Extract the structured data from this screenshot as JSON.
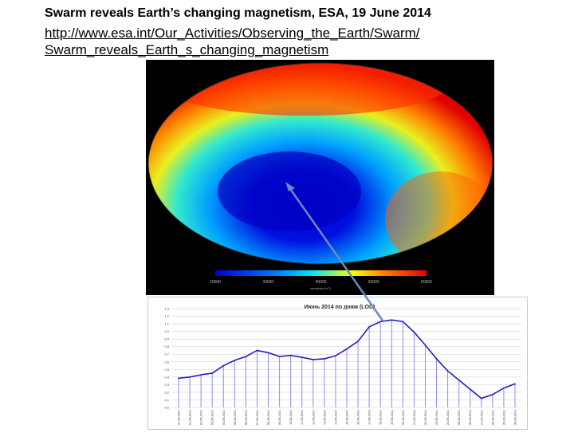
{
  "slide": {
    "title": "Swarm reveals Earth’s changing magnetism, ESA, 19 June 2014",
    "link_line1": "http://www.esa.int/Our_Activities/Observing_the_Earth/Swarm/",
    "link_line2": "Swarm_reveals_Earth_s_changing_magnetism"
  },
  "map": {
    "colorbar_ticks": [
      "20000",
      "30000",
      "40000",
      "50000",
      "60000"
    ],
    "colorbar_label": "nanotesla (nT)",
    "colors": [
      "#0000c8",
      "#00c8ff",
      "#ffff00",
      "#ff8000",
      "#e00000"
    ]
  },
  "chart_data": {
    "type": "line",
    "title": "Июнь  2014       по дням (LOD)",
    "xlabel": "",
    "ylabel": "",
    "ylim": [
      0.0,
      1.3
    ],
    "yticks": [
      "0,0",
      "0,1",
      "0,2",
      "0,3",
      "0,4",
      "0,5",
      "0,6",
      "0,7",
      "0,8",
      "0,9",
      "1,0",
      "1,1",
      "1,2",
      "1,3"
    ],
    "grid": true,
    "color": "#2020c0",
    "categories": [
      "31.05.2014",
      "01.06.2014",
      "02.06.2014",
      "03.06.2014",
      "04.06.2014",
      "05.06.2014",
      "06.06.2014",
      "07.06.2014",
      "08.06.2014",
      "09.06.2014",
      "10.06.2014",
      "11.06.2014",
      "12.06.2014",
      "13.06.2014",
      "14.06.2014",
      "15.06.2014",
      "16.06.2014",
      "17.06.2014",
      "18.06.2014",
      "19.06.2014",
      "20.06.2014",
      "21.06.2014",
      "22.06.2014",
      "23.06.2014",
      "24.06.2014",
      "25.06.2014",
      "26.06.2014",
      "27.06.2014",
      "28.06.2014",
      "29.06.2014",
      "30.06.2014"
    ],
    "values": [
      0.385,
      0.4,
      0.43,
      0.45,
      0.55,
      0.62,
      0.67,
      0.75,
      0.72,
      0.67,
      0.685,
      0.66,
      0.63,
      0.64,
      0.68,
      0.77,
      0.87,
      1.06,
      1.13,
      1.15,
      1.13,
      0.99,
      0.82,
      0.64,
      0.48,
      0.36,
      0.24,
      0.12,
      0.17,
      0.255,
      0.31
    ]
  }
}
